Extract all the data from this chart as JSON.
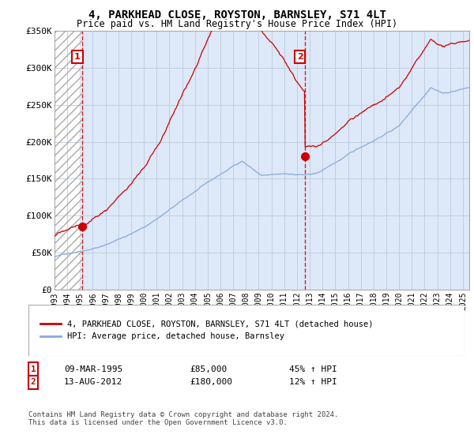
{
  "title": "4, PARKHEAD CLOSE, ROYSTON, BARNSLEY, S71 4LT",
  "subtitle": "Price paid vs. HM Land Registry's House Price Index (HPI)",
  "line_color_property": "#cc0000",
  "line_color_hpi": "#88aadd",
  "sale1_t": 1995.18,
  "sale1_price": 85000,
  "sale2_t": 2012.62,
  "sale2_price": 180000,
  "legend_label_property": "4, PARKHEAD CLOSE, ROYSTON, BARNSLEY, S71 4LT (detached house)",
  "legend_label_hpi": "HPI: Average price, detached house, Barnsley",
  "table_row1": [
    "1",
    "09-MAR-1995",
    "£85,000",
    "45% ↑ HPI"
  ],
  "table_row2": [
    "2",
    "13-AUG-2012",
    "£180,000",
    "12% ↑ HPI"
  ],
  "footer": "Contains HM Land Registry data © Crown copyright and database right 2024.\nThis data is licensed under the Open Government Licence v3.0.",
  "background_color": "#dde8f8",
  "grid_color": "#bbccdd",
  "xlim": [
    1993,
    2025.5
  ],
  "ylim": [
    0,
    350000
  ]
}
